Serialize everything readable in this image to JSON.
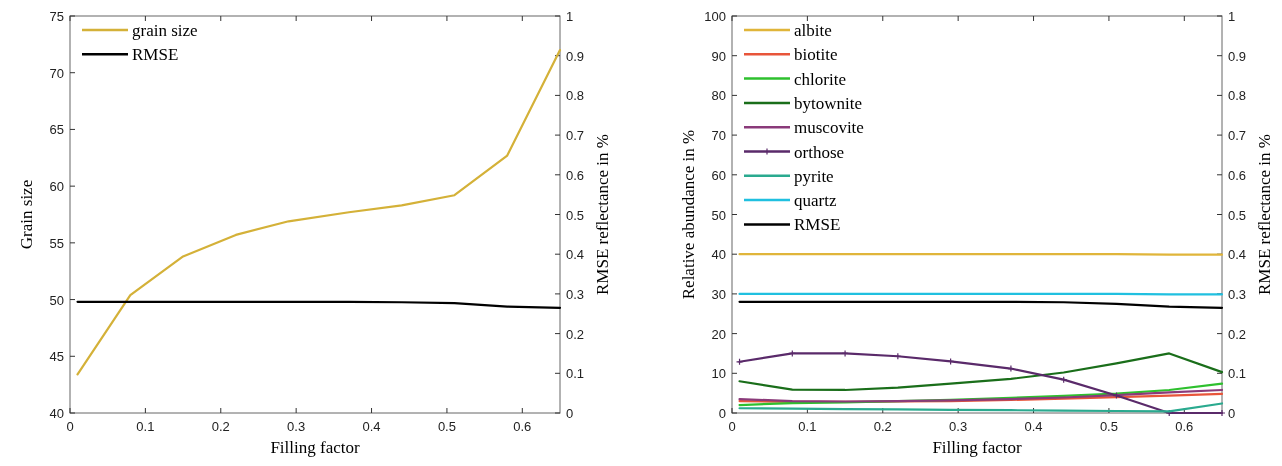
{
  "chart_data": [
    {
      "type": "line",
      "xlabel": "Filling factor",
      "ylabel": "Grain size",
      "y2label": "RMSE reflectance in %",
      "x": [
        0.01,
        0.08,
        0.15,
        0.22,
        0.29,
        0.37,
        0.44,
        0.51,
        0.58,
        0.65
      ],
      "xlim": [
        0,
        0.65
      ],
      "xticks": [
        {
          "value": 0,
          "label": "0"
        },
        0.1,
        0.2,
        0.3,
        0.4,
        0.5,
        0.6
      ],
      "ylim": [
        40,
        75
      ],
      "yticks": [
        40,
        45,
        50,
        55,
        60,
        65,
        70,
        75
      ],
      "y2lim": [
        0,
        1
      ],
      "y2ticks": [
        0,
        0.1,
        0.2,
        0.3,
        0.4,
        0.5,
        0.6,
        0.7,
        0.8,
        0.9,
        1
      ],
      "legend": "top left",
      "grid": false,
      "series": [
        {
          "name": "grain size",
          "color": "#d4b138",
          "values": [
            43.4,
            50.4,
            53.8,
            55.7,
            56.9,
            57.7,
            58.3,
            59.2,
            62.7,
            72.0
          ]
        },
        {
          "name": "RMSE",
          "color": "#000000",
          "axis": "y2",
          "values": [
            0.28,
            0.28,
            0.28,
            0.28,
            0.28,
            0.28,
            0.279,
            0.277,
            0.268,
            0.265
          ]
        }
      ]
    },
    {
      "type": "line",
      "xlabel": "Filling factor",
      "ylabel": "Relative abundance in %",
      "y2label": "RMSE reflectance in %",
      "x": [
        0.01,
        0.08,
        0.15,
        0.22,
        0.29,
        0.37,
        0.44,
        0.51,
        0.58,
        0.65
      ],
      "xlim": [
        0,
        0.65
      ],
      "xticks": [
        {
          "value": 0,
          "label": "0"
        },
        0.1,
        0.2,
        0.3,
        0.4,
        0.5,
        0.6
      ],
      "ylim": [
        0,
        100
      ],
      "yticks": [
        0,
        10,
        20,
        30,
        40,
        50,
        60,
        70,
        80,
        90,
        100
      ],
      "y2lim": [
        0,
        1
      ],
      "y2ticks": [
        0,
        0.1,
        0.2,
        0.3,
        0.4,
        0.5,
        0.6,
        0.7,
        0.8,
        0.9,
        1
      ],
      "legend": "top left",
      "grid": false,
      "series": [
        {
          "name": "albite",
          "color": "#e0b53a",
          "values": [
            40,
            40,
            40,
            40,
            40,
            40,
            40,
            40,
            39.9,
            39.9
          ]
        },
        {
          "name": "biotite",
          "color": "#e8553a",
          "values": [
            3.0,
            2.8,
            2.8,
            2.9,
            3.0,
            3.3,
            3.6,
            4.0,
            4.4,
            4.8
          ]
        },
        {
          "name": "chlorite",
          "color": "#2ec02e",
          "values": [
            2.0,
            2.5,
            2.7,
            3.0,
            3.3,
            3.8,
            4.3,
            4.9,
            5.8,
            7.4
          ]
        },
        {
          "name": "bytownite",
          "color": "#1a6e1a",
          "values": [
            8.0,
            5.9,
            5.8,
            6.4,
            7.4,
            8.6,
            10.2,
            12.5,
            15.0,
            10.3
          ]
        },
        {
          "name": "muscovite",
          "color": "#8a3a7a",
          "values": [
            3.5,
            3.0,
            2.9,
            3.0,
            3.2,
            3.5,
            3.9,
            4.5,
            5.2,
            5.8
          ]
        },
        {
          "name": "orthose",
          "color": "#5a2a6a",
          "marker": "cross",
          "values": [
            12.9,
            15.0,
            15.0,
            14.3,
            13.0,
            11.2,
            8.4,
            4.4,
            0,
            0
          ]
        },
        {
          "name": "pyrite",
          "color": "#2aaa8f",
          "values": [
            1.2,
            1.1,
            1.0,
            0.9,
            0.8,
            0.7,
            0.6,
            0.5,
            0.4,
            2.4
          ]
        },
        {
          "name": "quartz",
          "color": "#20c0e0",
          "values": [
            30,
            30,
            30,
            30,
            30,
            30,
            30,
            30,
            29.9,
            29.9
          ]
        },
        {
          "name": "RMSE",
          "color": "#000000",
          "axis": "y2",
          "values": [
            0.28,
            0.28,
            0.28,
            0.28,
            0.28,
            0.28,
            0.279,
            0.275,
            0.268,
            0.265
          ]
        }
      ]
    }
  ]
}
